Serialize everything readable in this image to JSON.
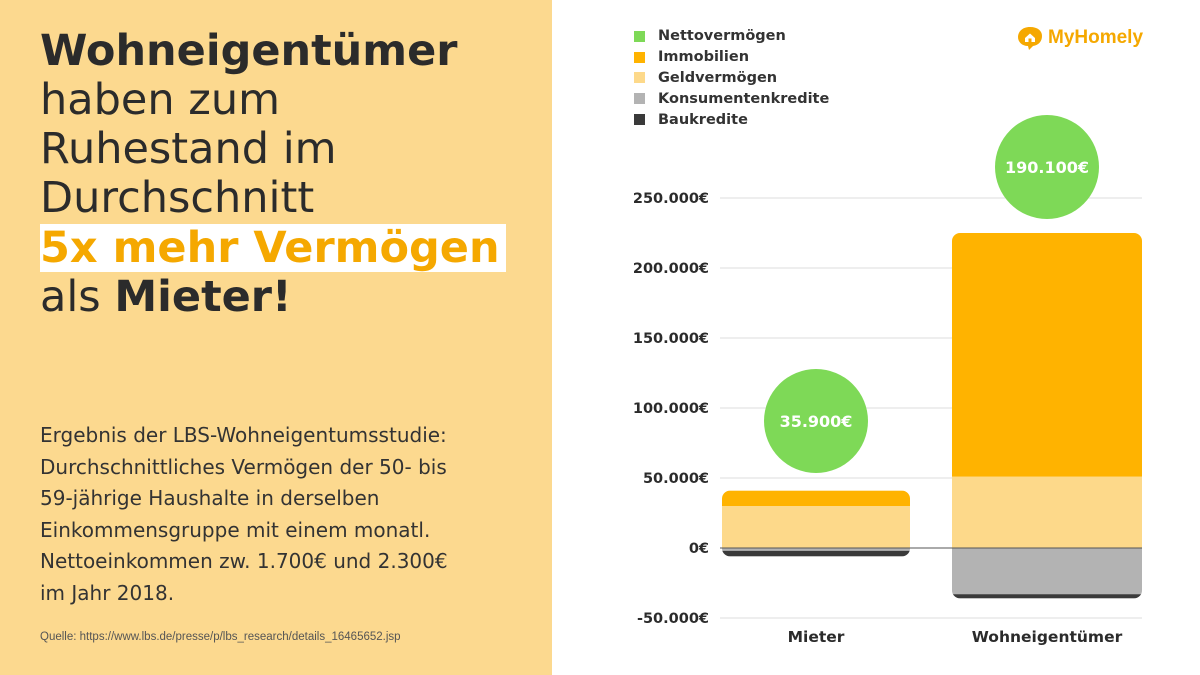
{
  "headline": {
    "line1": "Wohneigentümer",
    "line2": "haben zum",
    "line3": "Ruhestand im",
    "line4": "Durchschnitt",
    "highlight": "5x mehr Vermögen",
    "line6_prefix": "als ",
    "line6_bold": "Mieter!"
  },
  "body_lines": [
    "Ergebnis der LBS-Wohneigentumsstudie:",
    "Durchschnittliches Vermögen der 50- bis",
    "59-jährige Haushalte in derselben",
    "Einkommensgruppe mit einem monatl.",
    "Nettoeinkommen zw. 1.700€ und 2.300€",
    "im Jahr 2018."
  ],
  "source": "Quelle: https://www.lbs.de/presse/p/lbs_research/details_16465652.jsp",
  "logo": {
    "text": "MyHomely",
    "icon": "house-bubble-icon",
    "color": "#f5a800"
  },
  "colors": {
    "left_panel": "#fcd98f",
    "highlight_text": "#f5a800",
    "grid": "#dddddd"
  },
  "chart_data": {
    "type": "bar",
    "stacked": true,
    "categories": [
      "Mieter",
      "Wohneigentümer"
    ],
    "y_ticks": [
      "250.000€",
      "200.000€",
      "150.000€",
      "100.000€",
      "50.000€",
      "0€",
      "-50.000€"
    ],
    "y_tick_values": [
      250000,
      200000,
      150000,
      100000,
      50000,
      0,
      -50000
    ],
    "ylim": [
      -50000,
      250000
    ],
    "grid": true,
    "legend": "top-left",
    "series": [
      {
        "name": "Immobilien",
        "color": "#ffb300",
        "values": [
          11000,
          174000
        ]
      },
      {
        "name": "Geldvermögen",
        "color": "#fdd98a",
        "values": [
          30000,
          51000
        ]
      },
      {
        "name": "Konsumentenkredite",
        "color": "#b3b3b3",
        "values": [
          -2000,
          -33000
        ]
      },
      {
        "name": "Baukredite",
        "color": "#3a3a3a",
        "values": [
          -4000,
          -3000
        ]
      }
    ],
    "net": {
      "name": "Nettovermögen",
      "color": "#7ed957",
      "values": [
        35900,
        190100
      ],
      "labels": [
        "35.900€",
        "190.100€"
      ]
    },
    "legend_order": [
      "Nettovermögen",
      "Immobilien",
      "Geldvermögen",
      "Konsumentenkredite",
      "Baukredite"
    ]
  }
}
